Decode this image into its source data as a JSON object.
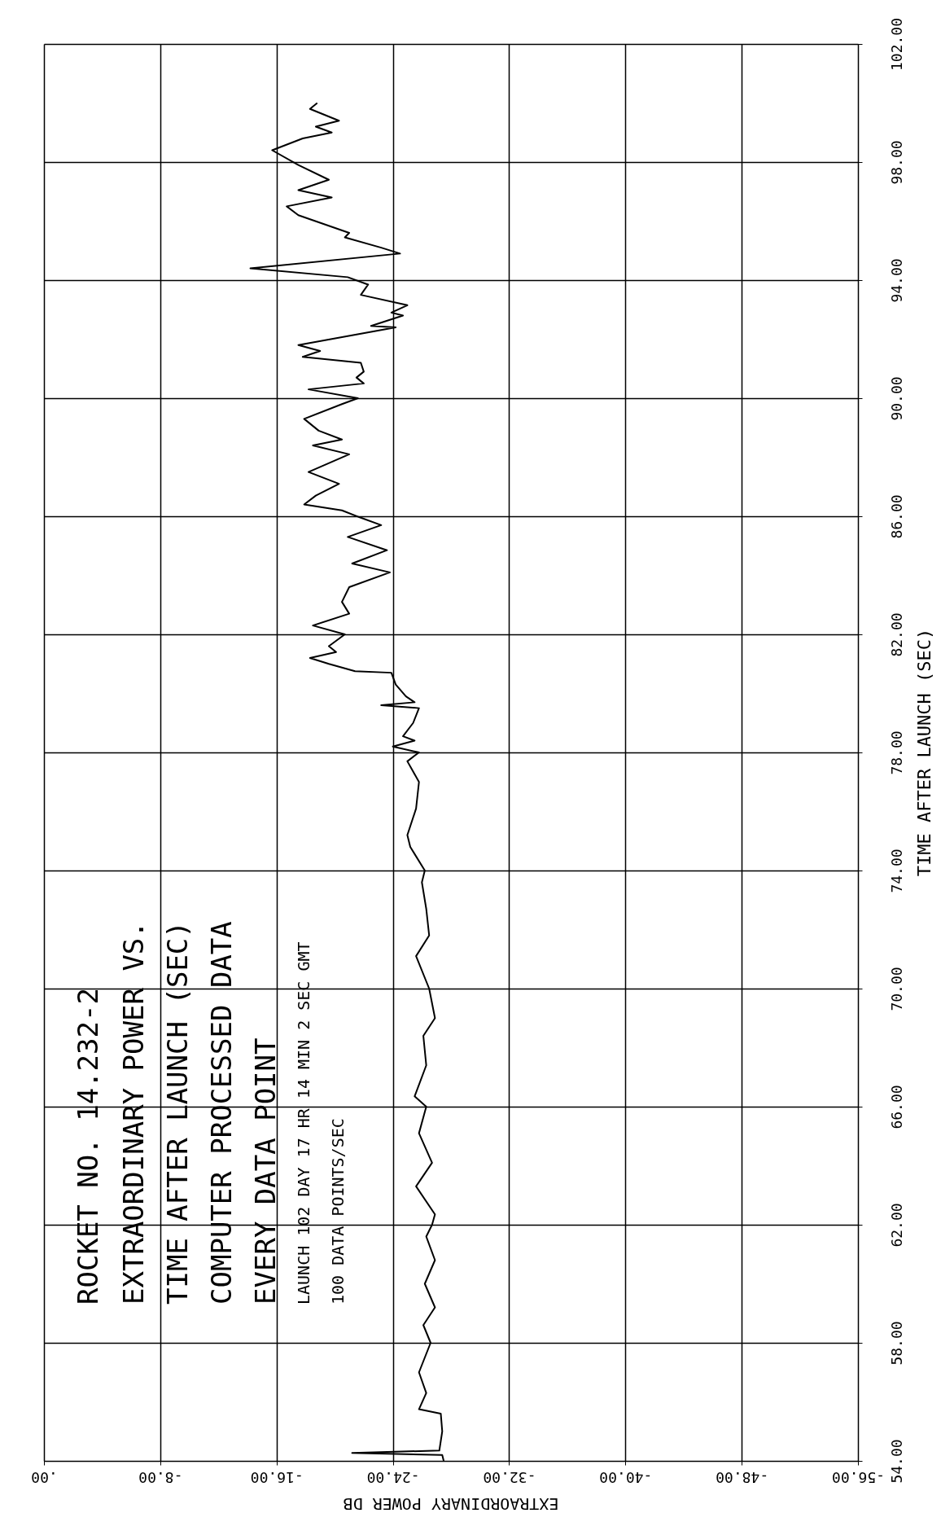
{
  "chart_data": {
    "type": "line",
    "orientation": "horizontal",
    "title": "ROCKET NO. 14.232-2",
    "subtitle": "EXTRAORDINARY POWER VS.\nTIME AFTER LAUNCH (SEC)\nCOMPUTER PROCESSED DATA\nEVERY DATA POINT",
    "annotations": [
      "LAUNCH 102 DAY 17 HR 14 MIN 2 SEC GMT",
      "100 DATA POINTS/SEC"
    ],
    "xlabel": "EXTRAORDINARY POWER DB",
    "ylabel": "TIME AFTER LAUNCH (SEC)",
    "xlim": [
      0,
      -56
    ],
    "ylim": [
      54,
      102
    ],
    "xticks": [
      {
        "value": 0,
        "label": ".00"
      },
      {
        "value": -8,
        "label": "-8.00"
      },
      {
        "value": -16,
        "label": "-16.00"
      },
      {
        "value": -24,
        "label": "-24.00"
      },
      {
        "value": -32,
        "label": "-32.00"
      },
      {
        "value": -40,
        "label": "-40.00"
      },
      {
        "value": -48,
        "label": "-48.00"
      },
      {
        "value": -56,
        "label": "-56.00"
      }
    ],
    "yticks": [
      {
        "value": 54,
        "label": "54.00"
      },
      {
        "value": 58,
        "label": "58.00"
      },
      {
        "value": 62,
        "label": "62.00"
      },
      {
        "value": 66,
        "label": "66.00"
      },
      {
        "value": 70,
        "label": "70.00"
      },
      {
        "value": 74,
        "label": "74.00"
      },
      {
        "value": 78,
        "label": "78.00"
      },
      {
        "value": 82,
        "label": "82.00"
      },
      {
        "value": 86,
        "label": "86.00"
      },
      {
        "value": 90,
        "label": "90.00"
      },
      {
        "value": 94,
        "label": "94.00"
      },
      {
        "value": 98,
        "label": "98.00"
      },
      {
        "value": 102,
        "label": "102.00"
      }
    ],
    "grid": true,
    "marker": "none",
    "line_style": "solid",
    "series": [
      {
        "color": "#000000",
        "x": [
          54.0,
          54.2,
          54.27,
          54.35,
          55.0,
          55.6,
          55.75,
          56.3,
          57.0,
          58.0,
          58.6,
          59.2,
          60.0,
          60.8,
          61.6,
          62.0,
          62.35,
          63.3,
          64.1,
          65.1,
          66.0,
          66.35,
          67.4,
          68.4,
          69.0,
          70.0,
          71.1,
          71.8,
          72.7,
          73.6,
          74.0,
          74.8,
          75.2,
          76.1,
          77.0,
          77.7,
          78.0,
          78.2,
          78.4,
          78.55,
          79.0,
          79.5,
          79.6,
          79.7,
          79.9,
          80.3,
          80.7,
          80.75,
          81.0,
          81.2,
          81.4,
          81.6,
          82.0,
          82.3,
          82.7,
          83.1,
          83.6,
          84.1,
          84.4,
          84.85,
          85.3,
          85.7,
          85.95,
          86.2,
          86.4,
          86.7,
          87.1,
          87.5,
          88.1,
          88.4,
          88.6,
          88.9,
          89.3,
          89.8,
          90.0,
          90.3,
          90.5,
          90.7,
          90.9,
          91.2,
          91.4,
          91.6,
          91.8,
          92.4,
          92.45,
          92.8,
          92.9,
          93.15,
          93.5,
          93.85,
          94.1,
          94.4,
          94.9,
          95.1,
          95.45,
          95.6,
          96.2,
          96.5,
          96.8,
          97.05,
          97.4,
          97.9,
          98.4,
          98.8,
          99.0,
          99.2,
          99.4,
          99.8,
          100.0
        ],
        "values": [
          -27.5,
          -27.4,
          -21.2,
          -27.2,
          -27.4,
          -27.3,
          -25.8,
          -26.3,
          -25.8,
          -26.6,
          -26.1,
          -26.9,
          -26.2,
          -26.9,
          -26.3,
          -26.7,
          -26.9,
          -25.6,
          -26.7,
          -25.8,
          -26.3,
          -25.5,
          -26.3,
          -26.1,
          -26.9,
          -26.5,
          -25.6,
          -26.5,
          -26.3,
          -26.0,
          -26.2,
          -25.2,
          -25.0,
          -25.6,
          -25.8,
          -25.0,
          -25.8,
          -24.0,
          -25.5,
          -24.7,
          -25.4,
          -25.8,
          -23.2,
          -25.5,
          -24.9,
          -24.2,
          -23.9,
          -21.4,
          -19.6,
          -18.3,
          -20.1,
          -19.6,
          -20.7,
          -18.5,
          -21.0,
          -20.5,
          -21.0,
          -23.8,
          -21.2,
          -23.6,
          -20.9,
          -23.2,
          -21.8,
          -20.5,
          -17.9,
          -18.7,
          -20.3,
          -18.2,
          -21.0,
          -18.5,
          -20.5,
          -18.9,
          -17.9,
          -20.5,
          -21.6,
          -18.2,
          -22.0,
          -21.5,
          -22.0,
          -21.8,
          -17.8,
          -19.0,
          -17.5,
          -24.2,
          -22.5,
          -24.7,
          -23.9,
          -25.0,
          -21.8,
          -22.3,
          -20.9,
          -14.2,
          -24.5,
          -23.2,
          -20.7,
          -21.0,
          -17.5,
          -16.7,
          -19.8,
          -17.5,
          -19.6,
          -17.5,
          -15.7,
          -17.8,
          -19.8,
          -18.7,
          -20.3,
          -18.3,
          -18.8
        ]
      }
    ]
  }
}
